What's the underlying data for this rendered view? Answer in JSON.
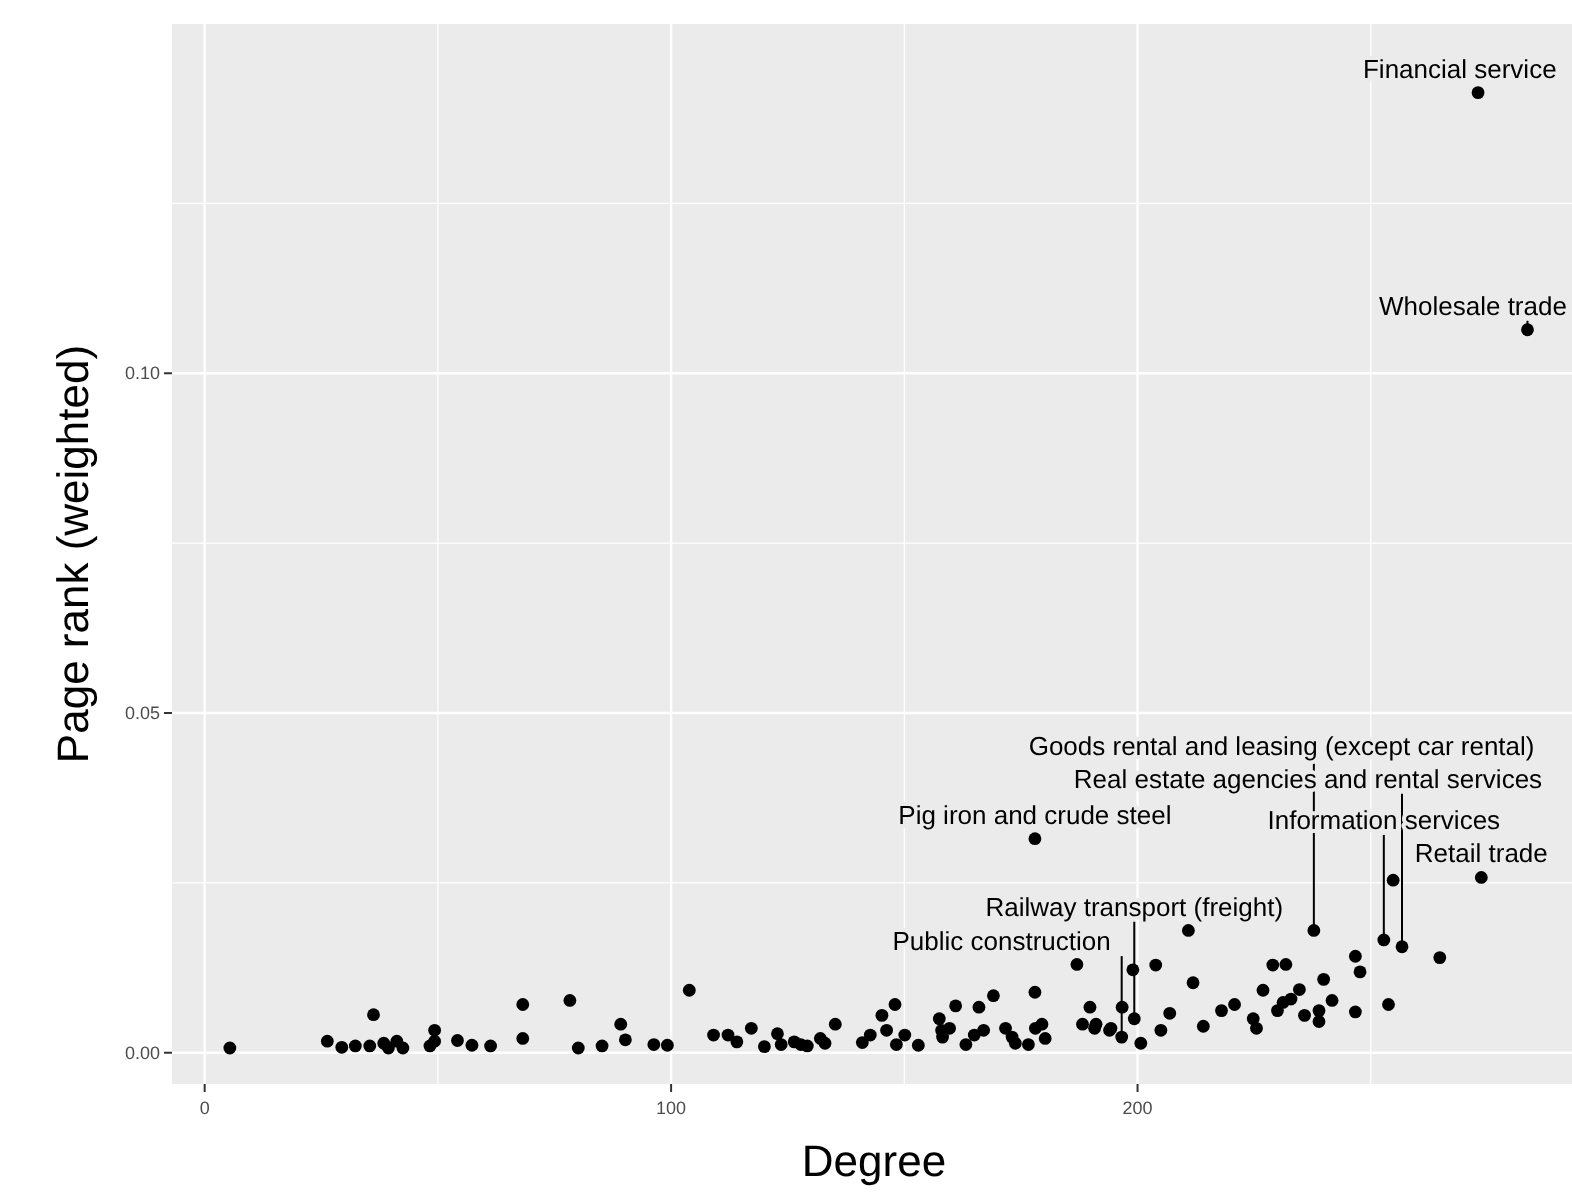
{
  "chart_data": {
    "type": "scatter",
    "xlabel": "Degree",
    "ylabel": "Page rank (weighted)",
    "xlim": [
      -7,
      294
    ],
    "ylim": [
      -0.0046,
      0.1514
    ],
    "xticks": [
      0,
      100,
      200
    ],
    "yticks": [
      {
        "value": 0,
        "label": "0.00"
      },
      {
        "value": 0.05,
        "label": "0.05"
      },
      {
        "value": 0.1,
        "label": "0.10"
      }
    ],
    "grid": true,
    "marker": "circle",
    "series": [
      {
        "color": "#000000",
        "x": [
          5.4,
          26.3,
          29.4,
          32.3,
          35.4,
          36.2,
          38.4,
          39.4,
          41.2,
          42.5,
          48.3,
          49.3,
          49.3,
          54.2,
          57.3,
          61.3,
          68.2,
          68.2,
          78.3,
          80.1,
          85.2,
          89.2,
          90.2,
          96.3,
          99.2,
          103.9,
          109.1,
          112.2,
          114.1,
          117.2,
          120,
          122.8,
          123.6,
          126.4,
          127.8,
          129.2,
          132,
          133,
          135.2,
          141,
          142.7,
          145.2,
          146.2,
          148,
          148.3,
          150.1,
          153,
          157.5,
          158,
          159.7,
          158.2,
          161,
          163.2,
          165,
          166,
          167,
          169.1,
          171.7,
          173.1,
          173.8,
          176.6,
          178,
          178,
          178.1,
          179.5,
          180.2,
          187,
          188.2,
          189.8,
          190.8,
          194,
          196.7,
          191.1,
          194.3,
          196.6,
          199,
          199.3,
          200.7,
          203.9,
          206.9,
          205,
          210.9,
          211.9,
          214.1,
          218,
          220.8,
          224.8,
          225.5,
          226.9,
          229,
          231.8,
          230,
          231.2,
          232.9,
          234.7,
          235.8,
          237.8,
          238.9,
          238.9,
          239.9,
          241.7,
          246.7,
          247.7,
          246.7,
          253.8,
          252.8,
          256.7,
          264.8,
          254.8,
          273.7,
          273,
          283.6
        ],
        "values": [
          0.0007,
          0.0017,
          0.0008,
          0.001,
          0.001,
          0.0056,
          0.0014,
          0.0007,
          0.0017,
          0.0007,
          0.001,
          0.0033,
          0.0017,
          0.0018,
          0.0011,
          0.001,
          0.0071,
          0.0021,
          0.0077,
          0.0007,
          0.001,
          0.0042,
          0.0019,
          0.0012,
          0.0011,
          0.0092,
          0.0026,
          0.0026,
          0.0016,
          0.0036,
          0.0009,
          0.0028,
          0.0012,
          0.0016,
          0.0012,
          0.001,
          0.0021,
          0.0014,
          0.0042,
          0.0015,
          0.0026,
          0.0055,
          0.0033,
          0.0071,
          0.0012,
          0.0026,
          0.0011,
          0.005,
          0.0033,
          0.0036,
          0.0023,
          0.0069,
          0.0012,
          0.0026,
          0.0067,
          0.0033,
          0.0084,
          0.0036,
          0.0023,
          0.0014,
          0.0012,
          0.0315,
          0.0089,
          0.0036,
          0.0042,
          0.0021,
          0.013,
          0.0042,
          0.0067,
          0.0036,
          0.0033,
          0.0067,
          0.0042,
          0.0036,
          0.0023,
          0.0122,
          0.005,
          0.0014,
          0.0129,
          0.0058,
          0.0033,
          0.018,
          0.0103,
          0.0039,
          0.0062,
          0.0071,
          0.005,
          0.0036,
          0.0092,
          0.0129,
          0.013,
          0.0062,
          0.0074,
          0.0079,
          0.0093,
          0.0055,
          0.018,
          0.0062,
          0.0046,
          0.0108,
          0.0077,
          0.0142,
          0.0119,
          0.006,
          0.0071,
          0.0166,
          0.0156,
          0.014,
          0.0254,
          0.0258,
          0.1413,
          0.1064
        ]
      }
    ],
    "annotations": [
      {
        "text": "Financial service",
        "x": 273,
        "y": 0.1413
      },
      {
        "text": "Wholesale trade",
        "x": 283.6,
        "y": 0.1064
      },
      {
        "text": "Pig iron and crude steel",
        "x": 178,
        "y": 0.0315
      },
      {
        "text": "Retail trade",
        "x": 273.7,
        "y": 0.0258
      },
      {
        "text": "Railway transport (freight)",
        "x": 199.3,
        "y": 0.005
      },
      {
        "text": "Information services",
        "x": 252.8,
        "y": 0.0166
      },
      {
        "text": "Real estate agencies and rental services",
        "x": 256.7,
        "y": 0.0156
      },
      {
        "text": "Goods rental and leasing (except car rental)",
        "x": 237.8,
        "y": 0.018
      },
      {
        "text": "Public construction",
        "x": 196.6,
        "y": 0.0023
      }
    ]
  }
}
